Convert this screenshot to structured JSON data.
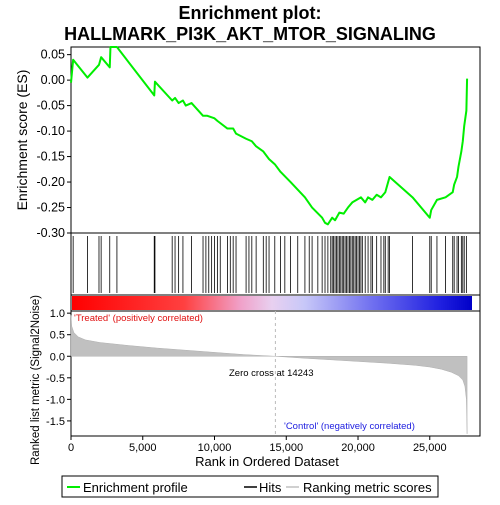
{
  "chart_data": {
    "type": "line",
    "title_line1": "Enrichment plot:",
    "title_line2": "HALLMARK_PI3K_AKT_MTOR_SIGNALING",
    "xlabel": "Rank in Ordered Dataset",
    "es_ylabel": "Enrichment score (ES)",
    "metric_ylabel": "Ranked list metric (Signal2Noise)",
    "xlim": [
      0,
      28500
    ],
    "es_ylim": [
      -0.3,
      0.065
    ],
    "metric_ylim": [
      -1.85,
      1.05
    ],
    "x_ticks": [
      0,
      5000,
      10000,
      15000,
      20000,
      25000
    ],
    "x_tick_labels": [
      "0",
      "5,000",
      "10,000",
      "15,000",
      "20,000",
      "25,000"
    ],
    "es_ticks": [
      0.05,
      0.0,
      -0.05,
      -0.1,
      -0.15,
      -0.2,
      -0.25,
      -0.3
    ],
    "es_tick_labels": [
      "0.05",
      "0.00",
      "-0.05",
      "-0.10",
      "-0.15",
      "-0.20",
      "-0.25",
      "-0.30"
    ],
    "metric_ticks": [
      1.0,
      0.5,
      0.0,
      -0.5,
      -1.0,
      -1.5
    ],
    "metric_tick_labels": [
      "1.0",
      "0.5",
      "0.0",
      "-0.5",
      "-1.0",
      "-1.5"
    ],
    "zero_cross_rank": 14243,
    "zero_cross_label": "Zero cross at 14243",
    "treated_label": "'Treated' (positively correlated)",
    "control_label": "'Control' (negatively correlated)",
    "total_ranks": 27600,
    "enrichment_profile": {
      "name": "Enrichment profile",
      "x": [
        0,
        150,
        1150,
        1950,
        2100,
        2700,
        2750,
        3200,
        5800,
        5850,
        7050,
        7250,
        7500,
        7800,
        8000,
        8400,
        9200,
        9500,
        10000,
        10200,
        10900,
        11300,
        11500,
        12200,
        12600,
        12900,
        13400,
        13800,
        14200,
        14600,
        15300,
        15800,
        16300,
        16800,
        17500,
        17700,
        17900,
        18200,
        18400,
        18700,
        19000,
        19300,
        19600,
        19900,
        20200,
        20500,
        20700,
        21000,
        21300,
        21600,
        21900,
        22200,
        23800,
        25000,
        25100,
        25500,
        26100,
        26600,
        26700,
        26900,
        27000,
        27200,
        27300,
        27400,
        27550,
        27600
      ],
      "y": [
        -0.005,
        0.04,
        0.005,
        0.03,
        0.045,
        0.025,
        0.065,
        0.065,
        -0.03,
        -0.003,
        -0.04,
        -0.035,
        -0.045,
        -0.04,
        -0.05,
        -0.045,
        -0.07,
        -0.07,
        -0.075,
        -0.08,
        -0.095,
        -0.095,
        -0.105,
        -0.115,
        -0.12,
        -0.13,
        -0.14,
        -0.155,
        -0.165,
        -0.18,
        -0.2,
        -0.215,
        -0.23,
        -0.25,
        -0.27,
        -0.28,
        -0.283,
        -0.27,
        -0.275,
        -0.26,
        -0.262,
        -0.25,
        -0.24,
        -0.235,
        -0.23,
        -0.24,
        -0.23,
        -0.235,
        -0.225,
        -0.23,
        -0.22,
        -0.19,
        -0.23,
        -0.27,
        -0.255,
        -0.235,
        -0.23,
        -0.22,
        -0.205,
        -0.19,
        -0.17,
        -0.14,
        -0.12,
        -0.09,
        -0.06,
        0.003
      ]
    },
    "hits": {
      "name": "Hits",
      "ranks": [
        150,
        1150,
        1950,
        2100,
        2700,
        3200,
        5800,
        5850,
        7050,
        7250,
        7500,
        7800,
        8400,
        9200,
        9400,
        9600,
        9800,
        10000,
        10200,
        10400,
        10900,
        11100,
        11300,
        11500,
        12200,
        12400,
        12600,
        12900,
        13400,
        13600,
        13800,
        14200,
        14600,
        14900,
        15300,
        15800,
        16300,
        16600,
        16800,
        17200,
        17500,
        17700,
        17900,
        18100,
        18200,
        18300,
        18400,
        18500,
        18600,
        18700,
        18800,
        18900,
        19000,
        19100,
        19200,
        19300,
        19400,
        19500,
        19600,
        19700,
        19800,
        19900,
        20000,
        20100,
        20200,
        20300,
        20500,
        20700,
        20900,
        21000,
        21300,
        21600,
        21800,
        21900,
        22100,
        22200,
        23800,
        25000,
        25100,
        25500,
        26100,
        26600,
        26700,
        26900,
        27000,
        27200,
        27300,
        27400,
        27550
      ]
    },
    "ranking_metric": {
      "name": "Ranking metric scores",
      "x": [
        0,
        50,
        200,
        500,
        1000,
        2000,
        4000,
        6000,
        8000,
        10000,
        12000,
        14243,
        16000,
        18000,
        20000,
        22000,
        24000,
        25000,
        25800,
        26500,
        27000,
        27300,
        27450,
        27550,
        27600
      ],
      "y": [
        0.95,
        0.7,
        0.55,
        0.45,
        0.38,
        0.32,
        0.25,
        0.19,
        0.14,
        0.09,
        0.04,
        0.0,
        -0.04,
        -0.08,
        -0.12,
        -0.16,
        -0.21,
        -0.25,
        -0.3,
        -0.37,
        -0.45,
        -0.55,
        -0.7,
        -1.0,
        -1.8
      ]
    },
    "colors": {
      "profile": "#00ee00",
      "hits": "#000000",
      "metric_fill": "#c0c0c0",
      "zero_cross": "#bbbbbb",
      "treated_text": "#e01010",
      "control_text": "#2020e0"
    },
    "legend": [
      {
        "label": "Enrichment profile",
        "symbol": "green-line"
      },
      {
        "label": "Hits",
        "symbol": "black-line"
      },
      {
        "label": "Ranking metric scores",
        "symbol": "gray-line"
      }
    ]
  }
}
